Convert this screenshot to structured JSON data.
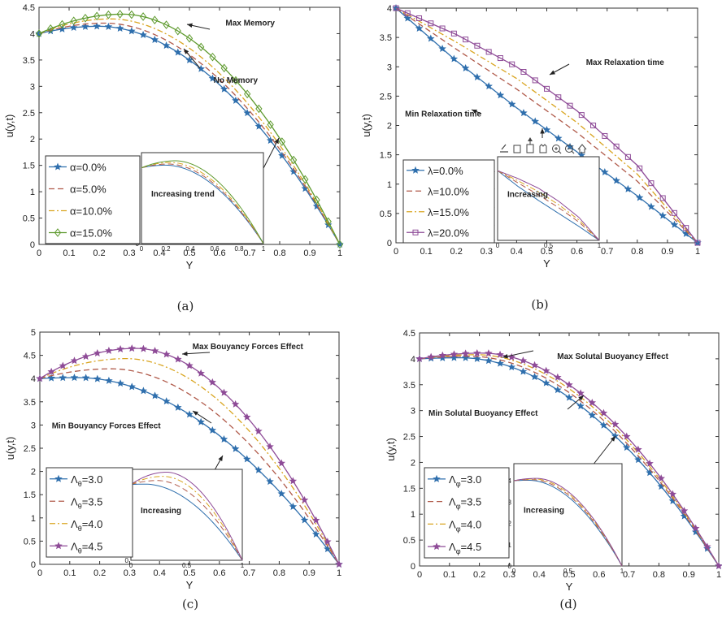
{
  "chart_data": [
    {
      "id": "a",
      "type": "line",
      "caption": "(a)",
      "xlabel": "Y",
      "ylabel": "u(y,t)",
      "xlim": [
        0,
        1
      ],
      "ylim": [
        0,
        4.5
      ],
      "xticks": [
        "0",
        "0.1",
        "0.2",
        "0.3",
        "0.4",
        "0.5",
        "0.6",
        "0.7",
        "0.8",
        "0.9",
        "1"
      ],
      "yticks": [
        "0",
        "0.5",
        "1",
        "1.5",
        "2",
        "2.5",
        "3",
        "3.5",
        "4",
        "4.5"
      ],
      "legend_position": "bottom-left",
      "series": [
        {
          "name": "α=0.0%",
          "color": "#2f6fad",
          "dash": "solid",
          "marker": "star",
          "peak": 4.14,
          "peak_x": 0.2,
          "values_x": [
            0,
            0.2,
            0.5,
            0.7,
            0.9,
            1
          ],
          "values_y": [
            4.0,
            4.14,
            3.78,
            2.8,
            1.15,
            0
          ]
        },
        {
          "name": "α=5.0%",
          "color": "#b05a4a",
          "dash": "dashed",
          "marker": "none",
          "peak": 4.2,
          "peak_x": 0.22,
          "values_x": [
            0,
            0.2,
            0.5,
            0.7,
            0.9,
            1
          ],
          "values_y": [
            4.0,
            4.19,
            3.9,
            2.95,
            1.25,
            0
          ]
        },
        {
          "name": "α=10.0%",
          "color": "#d9a520",
          "dash": "dashdot",
          "marker": "none",
          "peak": 4.28,
          "peak_x": 0.24,
          "values_x": [
            0,
            0.2,
            0.5,
            0.7,
            0.9,
            1
          ],
          "values_y": [
            4.0,
            4.26,
            4.05,
            3.1,
            1.35,
            0
          ]
        },
        {
          "name": "α=15.0%",
          "color": "#5e9a2e",
          "dash": "solid",
          "marker": "diamond",
          "peak": 4.37,
          "peak_x": 0.28,
          "values_x": [
            0,
            0.2,
            0.5,
            0.7,
            0.9,
            1
          ],
          "values_y": [
            4.0,
            4.33,
            4.25,
            3.3,
            1.5,
            0
          ]
        }
      ],
      "annotations": [
        {
          "text": "Max Memory",
          "x": 0.62,
          "y": 4.15
        },
        {
          "text": "No Memory",
          "x": 0.58,
          "y": 3.07
        }
      ],
      "inset": {
        "annotation": "Increasing trend",
        "xticks": [
          "0",
          "0.2",
          "0.4",
          "0.6",
          "0.8",
          "1"
        ],
        "yticks": [
          "0",
          "1",
          "2",
          "3",
          "4"
        ]
      }
    },
    {
      "id": "b",
      "type": "line",
      "caption": "(b)",
      "xlabel": "Y",
      "ylabel": "u(y,t)",
      "xlim": [
        0,
        1
      ],
      "ylim": [
        0,
        4
      ],
      "xticks": [
        "0",
        "0.1",
        "0.2",
        "0.3",
        "0.4",
        "0.5",
        "0.6",
        "0.7",
        "0.8",
        "0.9",
        "1"
      ],
      "yticks": [
        "0",
        "0.5",
        "1",
        "1.5",
        "2",
        "2.5",
        "3",
        "3.5",
        "4"
      ],
      "legend_position": "bottom-left",
      "series": [
        {
          "name": "λ=0.0%",
          "color": "#2f6fad",
          "dash": "solid",
          "marker": "star",
          "values_x": [
            0,
            0.2,
            0.4,
            0.6,
            0.8,
            1
          ],
          "values_y": [
            4.0,
            3.1,
            2.3,
            1.55,
            0.8,
            0
          ]
        },
        {
          "name": "λ=10.0%",
          "color": "#b05a4a",
          "dash": "dashed",
          "marker": "none",
          "values_x": [
            0,
            0.2,
            0.4,
            0.6,
            0.8,
            1
          ],
          "values_y": [
            4.0,
            3.3,
            2.62,
            1.88,
            1.05,
            0
          ]
        },
        {
          "name": "λ=15.0%",
          "color": "#d9a520",
          "dash": "dashdot",
          "marker": "none",
          "values_x": [
            0,
            0.2,
            0.4,
            0.6,
            0.8,
            1
          ],
          "values_y": [
            4.0,
            3.42,
            2.8,
            2.05,
            1.17,
            0
          ]
        },
        {
          "name": "λ=20.0%",
          "color": "#8e4b97",
          "dash": "solid",
          "marker": "square",
          "values_x": [
            0,
            0.2,
            0.4,
            0.6,
            0.8,
            1
          ],
          "values_y": [
            4.0,
            3.55,
            3.0,
            2.25,
            1.32,
            0
          ]
        }
      ],
      "annotations": [
        {
          "text": "Max Relaxation time",
          "x": 0.63,
          "y": 3.03
        },
        {
          "text": "Min Relaxation time",
          "x": 0.03,
          "y": 2.15
        }
      ],
      "inset": {
        "annotation": "Increasing",
        "xticks": [
          "0",
          "0.5",
          "1"
        ],
        "yticks": [
          "0",
          "1",
          "2",
          "3",
          "4"
        ]
      }
    },
    {
      "id": "c",
      "type": "line",
      "caption": "(c)",
      "xlabel": "Y",
      "ylabel": "u(y,t)",
      "xlim": [
        0,
        1
      ],
      "ylim": [
        0,
        5
      ],
      "xticks": [
        "0",
        "0.1",
        "0.2",
        "0.3",
        "0.4",
        "0.5",
        "0.6",
        "0.7",
        "0.8",
        "0.9",
        "1"
      ],
      "yticks": [
        "0",
        "0.5",
        "1",
        "1.5",
        "2",
        "2.5",
        "3",
        "3.5",
        "4",
        "4.5",
        "5"
      ],
      "legend_position": "bottom-left",
      "series": [
        {
          "name": "Λθ=3.0",
          "sub": "θ",
          "val": "=3.0",
          "color": "#2f6fad",
          "dash": "solid",
          "marker": "star",
          "peak": 4.02,
          "peak_x": 0.13
        },
        {
          "name": "Λθ=3.5",
          "sub": "θ",
          "val": "=3.5",
          "color": "#b05a4a",
          "dash": "dashed",
          "marker": "none",
          "peak": 4.21,
          "peak_x": 0.24
        },
        {
          "name": "Λθ=4.0",
          "sub": "θ",
          "val": "=4.0",
          "color": "#d9a520",
          "dash": "dashdot",
          "marker": "none",
          "peak": 4.43,
          "peak_x": 0.29
        },
        {
          "name": "Λθ=4.5",
          "sub": "θ",
          "val": "=4.5",
          "color": "#8e4b97",
          "dash": "solid",
          "marker": "star",
          "peak": 4.65,
          "peak_x": 0.32
        }
      ],
      "annotations": [
        {
          "text": "Max Bouyancy Forces Effect",
          "x": 0.51,
          "y": 4.63
        },
        {
          "text": "Min Bouyancy Forces Effect",
          "x": 0.04,
          "y": 2.93
        }
      ],
      "inset": {
        "annotation": "Increasing",
        "xticks": [
          "0",
          "0.5",
          "1"
        ],
        "yticks": [
          "0",
          "1",
          "2",
          "3",
          "4"
        ]
      }
    },
    {
      "id": "d",
      "type": "line",
      "caption": "(d)",
      "xlabel": "Y",
      "ylabel": "u(y,t)",
      "xlim": [
        0,
        1
      ],
      "ylim": [
        0,
        4.5
      ],
      "xticks": [
        "0",
        "0.1",
        "0.2",
        "0.3",
        "0.4",
        "0.5",
        "0.6",
        "0.7",
        "0.8",
        "0.9",
        "1"
      ],
      "yticks": [
        "0",
        "0.5",
        "1",
        "1.5",
        "2",
        "2.5",
        "3",
        "3.5",
        "4",
        "4.5"
      ],
      "legend_position": "bottom-left",
      "series": [
        {
          "name": "Λφ=3.0",
          "sub": "φ",
          "val": "=3.0",
          "color": "#2f6fad",
          "dash": "solid",
          "marker": "star",
          "peak": 4.02,
          "peak_x": 0.14
        },
        {
          "name": "Λφ=3.5",
          "sub": "φ",
          "val": "=3.5",
          "color": "#b05a4a",
          "dash": "dashed",
          "marker": "none",
          "peak": 4.05,
          "peak_x": 0.17
        },
        {
          "name": "Λφ=4.0",
          "sub": "φ",
          "val": "=4.0",
          "color": "#d9a520",
          "dash": "dashdot",
          "marker": "none",
          "peak": 4.08,
          "peak_x": 0.19
        },
        {
          "name": "Λφ=4.5",
          "sub": "φ",
          "val": "=4.5",
          "color": "#8e4b97",
          "dash": "solid",
          "marker": "star",
          "peak": 4.11,
          "peak_x": 0.21
        }
      ],
      "annotations": [
        {
          "text": "Max Solutal Buoyancy Effect",
          "x": 0.46,
          "y": 4.0
        },
        {
          "text": "Min Solutal Buoyancy Effect",
          "x": 0.03,
          "y": 2.9
        }
      ],
      "inset": {
        "annotation": "Increasing",
        "xticks": [
          "0",
          "0.5",
          "1"
        ],
        "yticks": [
          "0",
          "1",
          "2",
          "3",
          "4"
        ]
      }
    }
  ]
}
